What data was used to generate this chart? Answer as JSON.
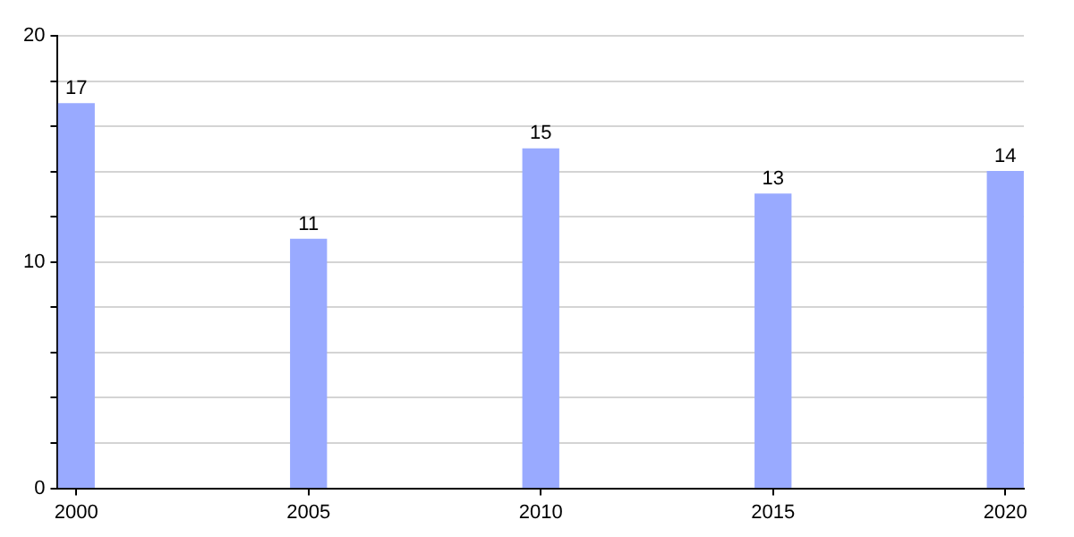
{
  "chart_data": {
    "type": "bar",
    "x": [
      2000,
      2005,
      2010,
      2015,
      2020
    ],
    "values": [
      17,
      11,
      15,
      13,
      14
    ],
    "color": "#99aaff",
    "xlim": [
      1999.6,
      2020.4
    ],
    "xticks": [
      2000,
      2005,
      2010,
      2015,
      2020
    ],
    "ylim": [
      0,
      20
    ],
    "yticks": [
      0,
      {
        "value": 2,
        "label": null
      },
      {
        "value": 4,
        "label": null
      },
      {
        "value": 6,
        "label": null
      },
      {
        "value": 8,
        "label": null
      },
      10,
      {
        "value": 12,
        "label": null
      },
      {
        "value": 14,
        "label": null
      },
      {
        "value": 16,
        "label": null
      },
      {
        "value": 18,
        "label": null
      },
      20
    ],
    "grid": true,
    "data_labels": true,
    "legend": false
  }
}
